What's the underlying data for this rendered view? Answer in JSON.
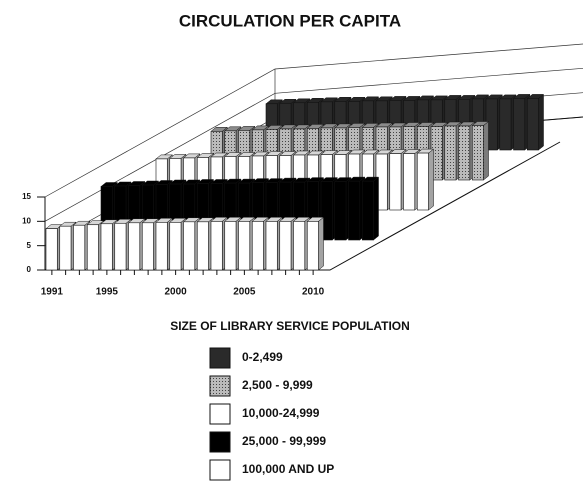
{
  "chart_data": {
    "type": "bar3d",
    "title": "CIRCULATION PER CAPITA",
    "legend_title": "SIZE OF LIBRARY SERVICE POPULATION",
    "categories": [
      "1991",
      null,
      null,
      null,
      "1995",
      null,
      null,
      null,
      null,
      "2000",
      null,
      null,
      null,
      null,
      "2005",
      null,
      null,
      null,
      null,
      "2010"
    ],
    "series": [
      {
        "name": "0-2,499",
        "color": "#2a2a2a",
        "values": [
          9.5,
          9.6,
          9.7,
          9.8,
          9.9,
          10,
          10,
          10.1,
          10.1,
          10.2,
          10.2,
          10.3,
          10.3,
          10.4,
          10.4,
          10.5,
          10.5,
          10.5,
          10.6,
          10.6
        ]
      },
      {
        "name": "2,500 - 9,999",
        "color": "#9a9a9a",
        "values": [
          10,
          10.1,
          10.2,
          10.3,
          10.4,
          10.5,
          10.5,
          10.6,
          10.7,
          10.7,
          10.8,
          10.8,
          10.9,
          10.9,
          11,
          11,
          11,
          11.1,
          11.1,
          11.2
        ]
      },
      {
        "name": "10,000-24,999",
        "color": "#ffffff",
        "values": [
          10.5,
          10.6,
          10.7,
          10.8,
          10.9,
          11,
          11,
          11.1,
          11.2,
          11.2,
          11.3,
          11.3,
          11.4,
          11.4,
          11.5,
          11.5,
          11.5,
          11.6,
          11.6,
          11.7
        ]
      },
      {
        "name": "25,000 - 99,999",
        "color": "#000000",
        "values": [
          11,
          11.1,
          11.2,
          11.3,
          11.4,
          11.5,
          11.5,
          11.6,
          11.6,
          11.7,
          11.7,
          11.8,
          11.8,
          11.9,
          11.9,
          12,
          12,
          12,
          12.1,
          12.1
        ]
      },
      {
        "name": "100,000 AND UP",
        "color": "#ffffff",
        "values": [
          8.5,
          9,
          9.2,
          9.3,
          9.5,
          9.6,
          9.7,
          9.7,
          9.8,
          9.8,
          9.9,
          9.9,
          10,
          10,
          10,
          10,
          10,
          10,
          10,
          10
        ]
      }
    ],
    "ylim": [
      0,
      15
    ],
    "yticks": [
      0,
      5,
      10,
      15
    ],
    "grid": true
  }
}
